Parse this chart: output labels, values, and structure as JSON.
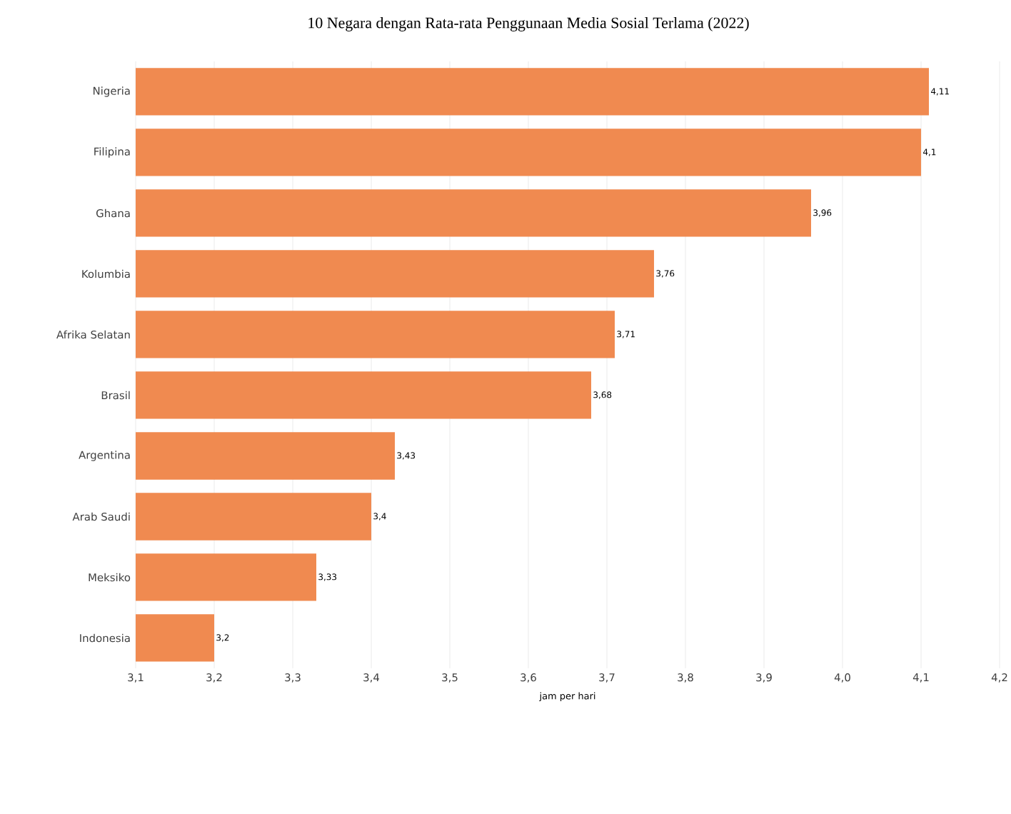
{
  "chart_data": {
    "type": "bar",
    "orientation": "horizontal",
    "title": "10 Negara dengan Rata-rata Penggunaan Media Sosial Terlama (2022)",
    "xlabel": "jam per hari",
    "categories": [
      "Nigeria",
      "Filipina",
      "Ghana",
      "Kolumbia",
      "Afrika Selatan",
      "Brasil",
      "Argentina",
      "Arab Saudi",
      "Meksiko",
      "Indonesia"
    ],
    "values": [
      4.11,
      4.1,
      3.96,
      3.76,
      3.71,
      3.68,
      3.43,
      3.4,
      3.33,
      3.2
    ],
    "value_labels": [
      "4,11",
      "4,1",
      "3,96",
      "3,76",
      "3,71",
      "3,68",
      "3,43",
      "3,4",
      "3,33",
      "3,2"
    ],
    "color": "#f08a50",
    "xlim": [
      3.1,
      4.2
    ],
    "xticks": [
      {
        "value": 3.1,
        "label": "3,1"
      },
      {
        "value": 3.2,
        "label": "3,2"
      },
      {
        "value": 3.3,
        "label": "3,3"
      },
      {
        "value": 3.4,
        "label": "3,4"
      },
      {
        "value": 3.5,
        "label": "3,5"
      },
      {
        "value": 3.6,
        "label": "3,6"
      },
      {
        "value": 3.7,
        "label": "3,7"
      },
      {
        "value": 3.8,
        "label": "3,8"
      },
      {
        "value": 3.9,
        "label": "3,9"
      },
      {
        "value": 4.0,
        "label": "4,0"
      },
      {
        "value": 4.1,
        "label": "4,1"
      },
      {
        "value": 4.2,
        "label": "4,2"
      }
    ],
    "grid": "x"
  }
}
